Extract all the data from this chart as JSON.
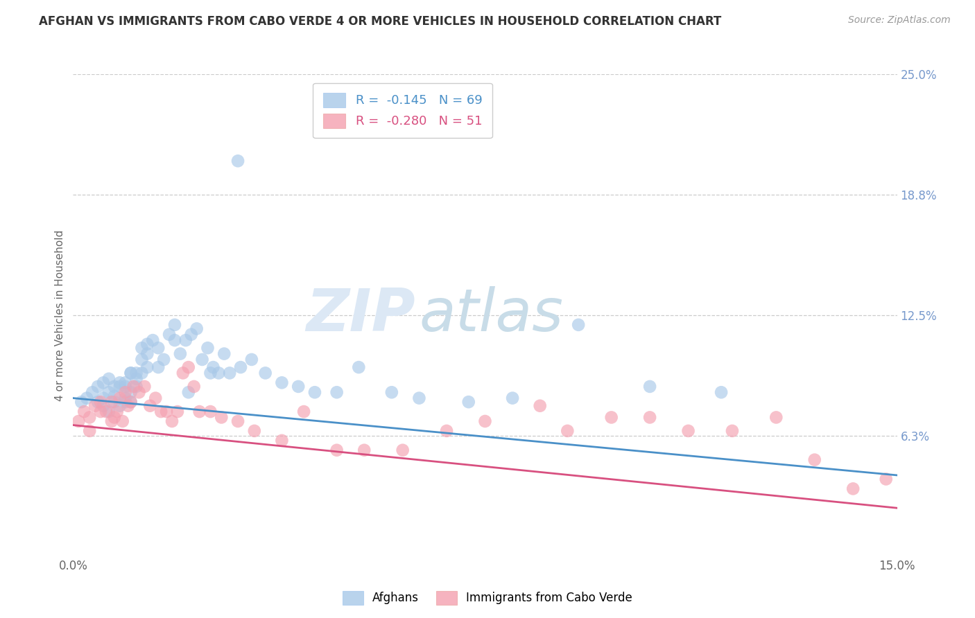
{
  "title": "AFGHAN VS IMMIGRANTS FROM CABO VERDE 4 OR MORE VEHICLES IN HOUSEHOLD CORRELATION CHART",
  "source": "Source: ZipAtlas.com",
  "ylabel": "4 or more Vehicles in Household",
  "xlim": [
    0.0,
    15.0
  ],
  "ylim": [
    0.0,
    25.0
  ],
  "blue_R": "-0.145",
  "blue_N": "69",
  "pink_R": "-0.280",
  "pink_N": "51",
  "blue_label": "Afghans",
  "pink_label": "Immigrants from Cabo Verde",
  "blue_color": "#a8c8e8",
  "pink_color": "#f4a0b0",
  "blue_line_color": "#4a90c8",
  "pink_line_color": "#d85080",
  "watermark_zip": "ZIP",
  "watermark_atlas": "atlas",
  "blue_x": [
    0.15,
    0.25,
    0.35,
    0.45,
    0.55,
    0.55,
    0.65,
    0.65,
    0.75,
    0.75,
    0.85,
    0.85,
    0.95,
    0.95,
    0.95,
    1.05,
    1.05,
    1.05,
    1.15,
    1.15,
    1.25,
    1.25,
    1.35,
    1.35,
    1.45,
    1.55,
    1.65,
    1.75,
    1.85,
    1.95,
    2.05,
    2.15,
    2.25,
    2.35,
    2.45,
    2.55,
    2.65,
    2.75,
    2.85,
    3.05,
    3.25,
    3.5,
    3.8,
    4.1,
    4.4,
    4.8,
    5.2,
    5.8,
    6.3,
    7.2,
    8.0,
    9.2,
    10.5,
    11.8,
    0.45,
    0.55,
    0.65,
    0.75,
    0.85,
    0.95,
    1.05,
    1.15,
    1.25,
    1.35,
    1.55,
    1.85,
    2.1,
    2.5,
    3.0
  ],
  "blue_y": [
    8.0,
    8.2,
    8.5,
    8.0,
    8.2,
    7.8,
    8.5,
    7.5,
    8.0,
    8.3,
    7.8,
    8.8,
    8.2,
    8.0,
    9.0,
    8.5,
    9.5,
    8.0,
    9.2,
    8.8,
    10.2,
    9.5,
    9.8,
    10.5,
    11.2,
    10.8,
    10.2,
    11.5,
    12.0,
    10.5,
    11.2,
    11.5,
    11.8,
    10.2,
    10.8,
    9.8,
    9.5,
    10.5,
    9.5,
    9.8,
    10.2,
    9.5,
    9.0,
    8.8,
    8.5,
    8.5,
    9.8,
    8.5,
    8.2,
    8.0,
    8.2,
    12.0,
    8.8,
    8.5,
    8.8,
    9.0,
    9.2,
    8.8,
    9.0,
    8.8,
    9.5,
    9.5,
    10.8,
    11.0,
    9.8,
    11.2,
    8.5,
    9.5,
    20.5
  ],
  "pink_x": [
    0.1,
    0.2,
    0.3,
    0.3,
    0.4,
    0.5,
    0.5,
    0.6,
    0.7,
    0.7,
    0.75,
    0.8,
    0.85,
    0.9,
    0.95,
    1.0,
    1.05,
    1.1,
    1.2,
    1.3,
    1.4,
    1.5,
    1.6,
    1.7,
    1.8,
    1.9,
    2.0,
    2.1,
    2.2,
    2.3,
    2.5,
    2.7,
    3.0,
    3.3,
    3.8,
    4.2,
    4.8,
    5.3,
    6.0,
    6.8,
    7.5,
    8.5,
    9.0,
    9.8,
    10.5,
    11.2,
    12.0,
    12.8,
    13.5,
    14.2,
    14.8
  ],
  "pink_y": [
    7.0,
    7.5,
    6.5,
    7.2,
    7.8,
    7.5,
    8.0,
    7.5,
    8.0,
    7.0,
    7.2,
    7.5,
    8.2,
    7.0,
    8.5,
    7.8,
    8.0,
    8.8,
    8.5,
    8.8,
    7.8,
    8.2,
    7.5,
    7.5,
    7.0,
    7.5,
    9.5,
    9.8,
    8.8,
    7.5,
    7.5,
    7.2,
    7.0,
    6.5,
    6.0,
    7.5,
    5.5,
    5.5,
    5.5,
    6.5,
    7.0,
    7.8,
    6.5,
    7.2,
    7.2,
    6.5,
    6.5,
    7.2,
    5.0,
    3.5,
    4.0
  ]
}
